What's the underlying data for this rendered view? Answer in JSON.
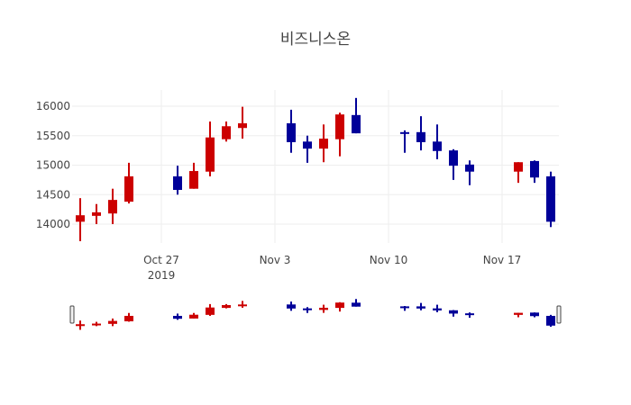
{
  "chart_data": {
    "type": "candlestick",
    "title": "비즈니스온",
    "xlabel": "",
    "ylabel": "",
    "ylim": [
      13600,
      16300
    ],
    "yticks": [
      14000,
      14500,
      15000,
      15500,
      16000
    ],
    "ytick_labels": [
      "14000",
      "14500",
      "15000",
      "15500",
      "16000"
    ],
    "xticks": [
      {
        "date": "2019-10-27",
        "label": "Oct 27",
        "sublabel": "2019"
      },
      {
        "date": "2019-11-03",
        "label": "Nov 3",
        "sublabel": ""
      },
      {
        "date": "2019-11-10",
        "label": "Nov 10",
        "sublabel": ""
      },
      {
        "date": "2019-11-17",
        "label": "Nov 17",
        "sublabel": ""
      }
    ],
    "x_range": [
      "2019-10-21T12:00",
      "2019-11-20T12:00"
    ],
    "grid": true,
    "legend": false,
    "rangeslider": true,
    "increasing_color": "#cc0000",
    "decreasing_color": "#000099",
    "candles": [
      {
        "date": "2019-10-22",
        "open": 14040,
        "high": 14440,
        "low": 13710,
        "close": 14150
      },
      {
        "date": "2019-10-23",
        "open": 14140,
        "high": 14340,
        "low": 14000,
        "close": 14200
      },
      {
        "date": "2019-10-24",
        "open": 14180,
        "high": 14600,
        "low": 14000,
        "close": 14410
      },
      {
        "date": "2019-10-25",
        "open": 14380,
        "high": 15040,
        "low": 14350,
        "close": 14810
      },
      {
        "date": "2019-10-28",
        "open": 14810,
        "high": 14990,
        "low": 14500,
        "close": 14580
      },
      {
        "date": "2019-10-29",
        "open": 14600,
        "high": 15040,
        "low": 14600,
        "close": 14900
      },
      {
        "date": "2019-10-30",
        "open": 14890,
        "high": 15740,
        "low": 14810,
        "close": 15470
      },
      {
        "date": "2019-10-31",
        "open": 15440,
        "high": 15740,
        "low": 15400,
        "close": 15660
      },
      {
        "date": "2019-11-01",
        "open": 15630,
        "high": 15990,
        "low": 15450,
        "close": 15710
      },
      {
        "date": "2019-11-04",
        "open": 15710,
        "high": 15940,
        "low": 15210,
        "close": 15390
      },
      {
        "date": "2019-11-05",
        "open": 15400,
        "high": 15500,
        "low": 15040,
        "close": 15280
      },
      {
        "date": "2019-11-06",
        "open": 15280,
        "high": 15690,
        "low": 15050,
        "close": 15450
      },
      {
        "date": "2019-11-07",
        "open": 15440,
        "high": 15890,
        "low": 15150,
        "close": 15860
      },
      {
        "date": "2019-11-08",
        "open": 15850,
        "high": 16140,
        "low": 15540,
        "close": 15540
      },
      {
        "date": "2019-11-11",
        "open": 15560,
        "high": 15590,
        "low": 15210,
        "close": 15540
      },
      {
        "date": "2019-11-12",
        "open": 15560,
        "high": 15830,
        "low": 15250,
        "close": 15390
      },
      {
        "date": "2019-11-13",
        "open": 15400,
        "high": 15690,
        "low": 15100,
        "close": 15240
      },
      {
        "date": "2019-11-14",
        "open": 15250,
        "high": 15270,
        "low": 14750,
        "close": 14990
      },
      {
        "date": "2019-11-15",
        "open": 15010,
        "high": 15080,
        "low": 14660,
        "close": 14890
      },
      {
        "date": "2019-11-18",
        "open": 14890,
        "high": 15050,
        "low": 14700,
        "close": 15050
      },
      {
        "date": "2019-11-19",
        "open": 15070,
        "high": 15080,
        "low": 14700,
        "close": 14790
      },
      {
        "date": "2019-11-20",
        "open": 14810,
        "high": 14890,
        "low": 13950,
        "close": 14040
      }
    ]
  }
}
